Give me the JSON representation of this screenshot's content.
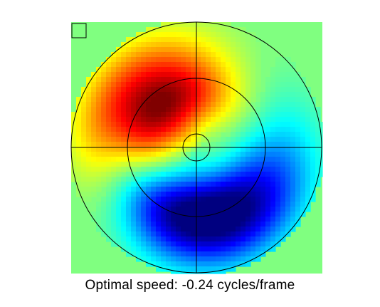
{
  "caption": "Optimal speed: -0.24 cycles/frame",
  "chart_data": {
    "type": "heatmap",
    "coordinate_system": "polar",
    "title": "",
    "xlabel": "",
    "ylabel": "",
    "colormap": "jet",
    "value_range": [
      -1,
      1
    ],
    "background_value": 0,
    "rings": [
      "inner",
      "middle",
      "outer"
    ],
    "crosshair": true,
    "corner_marker": "top-left square",
    "blobs": [
      {
        "sign": "positive",
        "peak": 1.0,
        "direction_deg": 135,
        "radius_fraction": 0.42,
        "spread_radial": 0.22,
        "spread_angular_deg": 55
      },
      {
        "sign": "positive",
        "peak": 0.45,
        "direction_deg": 150,
        "radius_fraction": 0.78,
        "spread_radial": 0.2,
        "spread_angular_deg": 45
      },
      {
        "sign": "negative",
        "peak": -1.0,
        "direction_deg": 270,
        "radius_fraction": 0.5,
        "spread_radial": 0.22,
        "spread_angular_deg": 60
      },
      {
        "sign": "negative",
        "peak": -0.45,
        "direction_deg": 300,
        "radius_fraction": 0.78,
        "spread_radial": 0.22,
        "spread_angular_deg": 55
      }
    ]
  }
}
